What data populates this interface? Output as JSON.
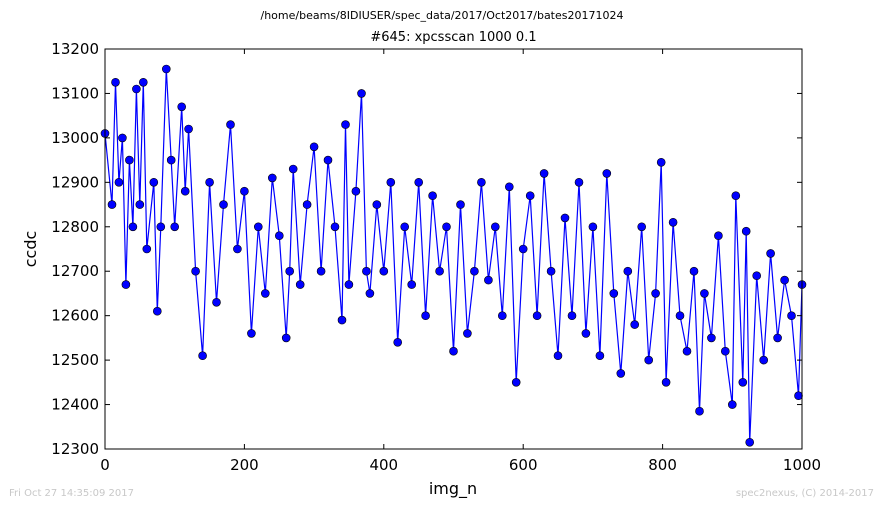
{
  "header": {
    "suptitle": "/home/beams/8IDIUSER/spec_data/2017/Oct2017/bates20171024"
  },
  "footer": {
    "timestamp": "Fri Oct 27 14:35:09 2017",
    "credit": "spec2nexus, (C) 2014-2017"
  },
  "chart_data": {
    "type": "line",
    "title": "#645: xpcsscan 1000 0.1",
    "xlabel": "img_n",
    "ylabel": "ccdc",
    "xlim": [
      0,
      1000
    ],
    "ylim": [
      12300,
      13200
    ],
    "xticks": [
      0,
      200,
      400,
      600,
      800,
      1000
    ],
    "yticks": [
      12300,
      12400,
      12500,
      12600,
      12700,
      12800,
      12900,
      13000,
      13100,
      13200
    ],
    "grid": false,
    "line_color": "#0000ff",
    "marker": "circle",
    "series": [
      {
        "x": [
          0,
          10,
          15,
          20,
          25,
          30,
          35,
          40,
          45,
          50,
          55,
          60,
          70,
          75,
          80,
          88,
          95,
          100,
          110,
          115,
          120,
          130,
          140,
          150,
          160,
          170,
          180,
          190,
          200,
          210,
          220,
          230,
          240,
          250,
          260,
          265,
          270,
          280,
          290,
          300,
          310,
          320,
          330,
          340,
          345,
          350,
          360,
          368,
          375,
          380,
          390,
          400,
          410,
          420,
          430,
          440,
          450,
          460,
          470,
          480,
          490,
          500,
          510,
          520,
          530,
          540,
          550,
          560,
          570,
          580,
          590,
          600,
          610,
          620,
          630,
          640,
          650,
          660,
          670,
          680,
          690,
          700,
          710,
          720,
          730,
          740,
          750,
          760,
          770,
          780,
          790,
          798,
          805,
          815,
          825,
          835,
          845,
          853,
          860,
          870,
          880,
          890,
          900,
          905,
          915,
          920,
          925,
          935,
          945,
          955,
          965,
          975,
          985,
          995,
          1000
        ],
        "y": [
          13010,
          12850,
          13125,
          12900,
          13000,
          12670,
          12950,
          12800,
          13110,
          12850,
          13125,
          12750,
          12900,
          12610,
          12800,
          13155,
          12950,
          12800,
          13070,
          12880,
          13020,
          12700,
          12510,
          12900,
          12630,
          12850,
          13030,
          12750,
          12880,
          12560,
          12800,
          12650,
          12910,
          12780,
          12550,
          12700,
          12930,
          12670,
          12850,
          12980,
          12700,
          12950,
          12800,
          12590,
          13030,
          12670,
          12880,
          13100,
          12700,
          12650,
          12850,
          12700,
          12900,
          12540,
          12800,
          12670,
          12900,
          12600,
          12870,
          12700,
          12800,
          12520,
          12850,
          12560,
          12700,
          12900,
          12680,
          12800,
          12600,
          12890,
          12450,
          12750,
          12870,
          12600,
          12920,
          12700,
          12510,
          12820,
          12600,
          12900,
          12560,
          12800,
          12510,
          12920,
          12650,
          12470,
          12700,
          12580,
          12800,
          12500,
          12650,
          12945,
          12450,
          12810,
          12600,
          12520,
          12700,
          12385,
          12650,
          12550,
          12780,
          12520,
          12400,
          12870,
          12450,
          12790,
          12315,
          12690,
          12500,
          12740,
          12550,
          12680,
          12600,
          12420,
          12670
        ]
      }
    ]
  }
}
